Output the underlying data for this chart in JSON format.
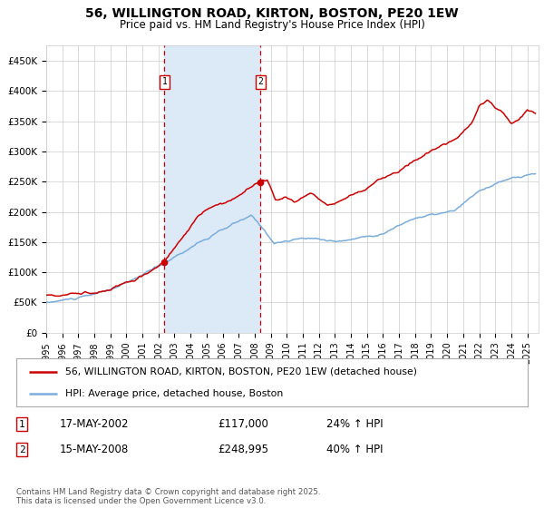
{
  "title": "56, WILLINGTON ROAD, KIRTON, BOSTON, PE20 1EW",
  "subtitle": "Price paid vs. HM Land Registry's House Price Index (HPI)",
  "ylim": [
    0,
    475000
  ],
  "yticks": [
    0,
    50000,
    100000,
    150000,
    200000,
    250000,
    300000,
    350000,
    400000,
    450000
  ],
  "ytick_labels": [
    "£0",
    "£50K",
    "£100K",
    "£150K",
    "£200K",
    "£250K",
    "£300K",
    "£350K",
    "£400K",
    "£450K"
  ],
  "hpi_color": "#7aaddc",
  "price_color": "#cc0000",
  "shade_color": "#dce9f7",
  "vline_color": "#cc0000",
  "bg_color": "#ffffff",
  "grid_color": "#cccccc",
  "purchase1_year": 2002.37,
  "purchase1_price": 117000,
  "purchase2_year": 2008.37,
  "purchase2_price": 248995,
  "legend_line1": "56, WILLINGTON ROAD, KIRTON, BOSTON, PE20 1EW (detached house)",
  "legend_line2": "HPI: Average price, detached house, Boston",
  "table_row1": [
    "1",
    "17-MAY-2002",
    "£117,000",
    "24% ↑ HPI"
  ],
  "table_row2": [
    "2",
    "15-MAY-2008",
    "£248,995",
    "40% ↑ HPI"
  ],
  "footnote": "Contains HM Land Registry data © Crown copyright and database right 2025.\nThis data is licensed under the Open Government Licence v3.0."
}
